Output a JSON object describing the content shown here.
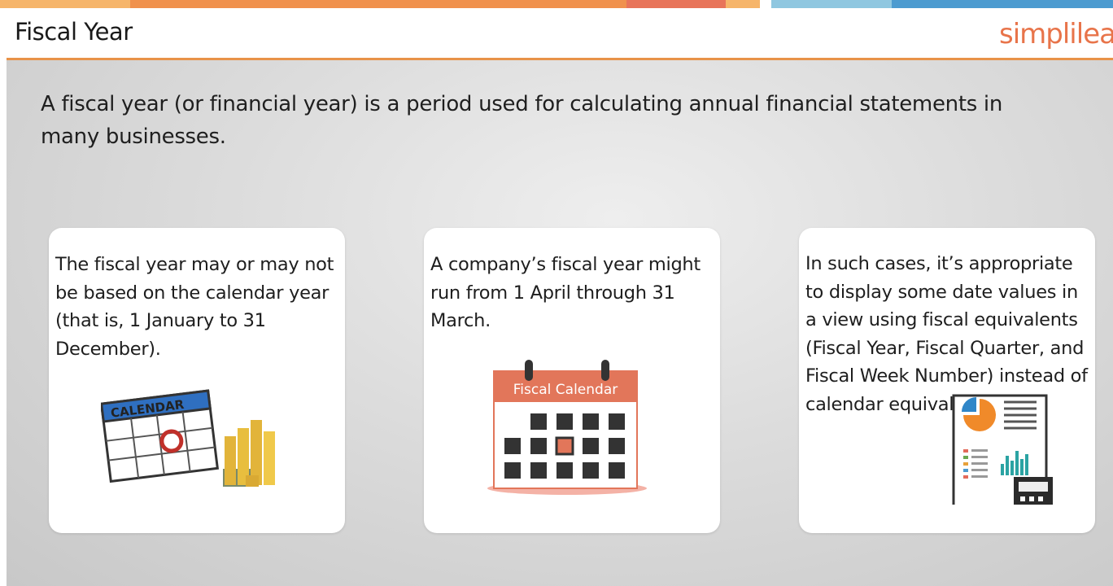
{
  "header": {
    "title": "Fiscal Year",
    "logo_text": "simplilea"
  },
  "intro": "A fiscal year (or financial year) is a period used for calculating annual financial statements in many businesses.",
  "cards": [
    {
      "text": "The fiscal year may or may not be based on the calendar year (that is, 1 January to 31 December).",
      "illustration": "calendar-money-icon",
      "illustration_label": "CALENDAR"
    },
    {
      "text": "A company’s fiscal year might run from 1 April through 31 March.",
      "illustration": "fiscal-calendar-icon",
      "illustration_label": "Fiscal Calendar"
    },
    {
      "text": "In such cases, it’s appropriate to display some date values in a view using fiscal equivalents (Fiscal Year, Fiscal Quarter, and Fiscal Week Number) instead of calendar equivalents.",
      "illustration": "report-calculator-icon"
    }
  ],
  "colors": {
    "accent": "#e89248",
    "logo": "#e8744a",
    "calendar_header": "#e2765a",
    "topbar": [
      "#f3a75b",
      "#f0914d",
      "#e8745a",
      "#f6b56a",
      "#8fc7e0",
      "#4c9bd0"
    ]
  }
}
